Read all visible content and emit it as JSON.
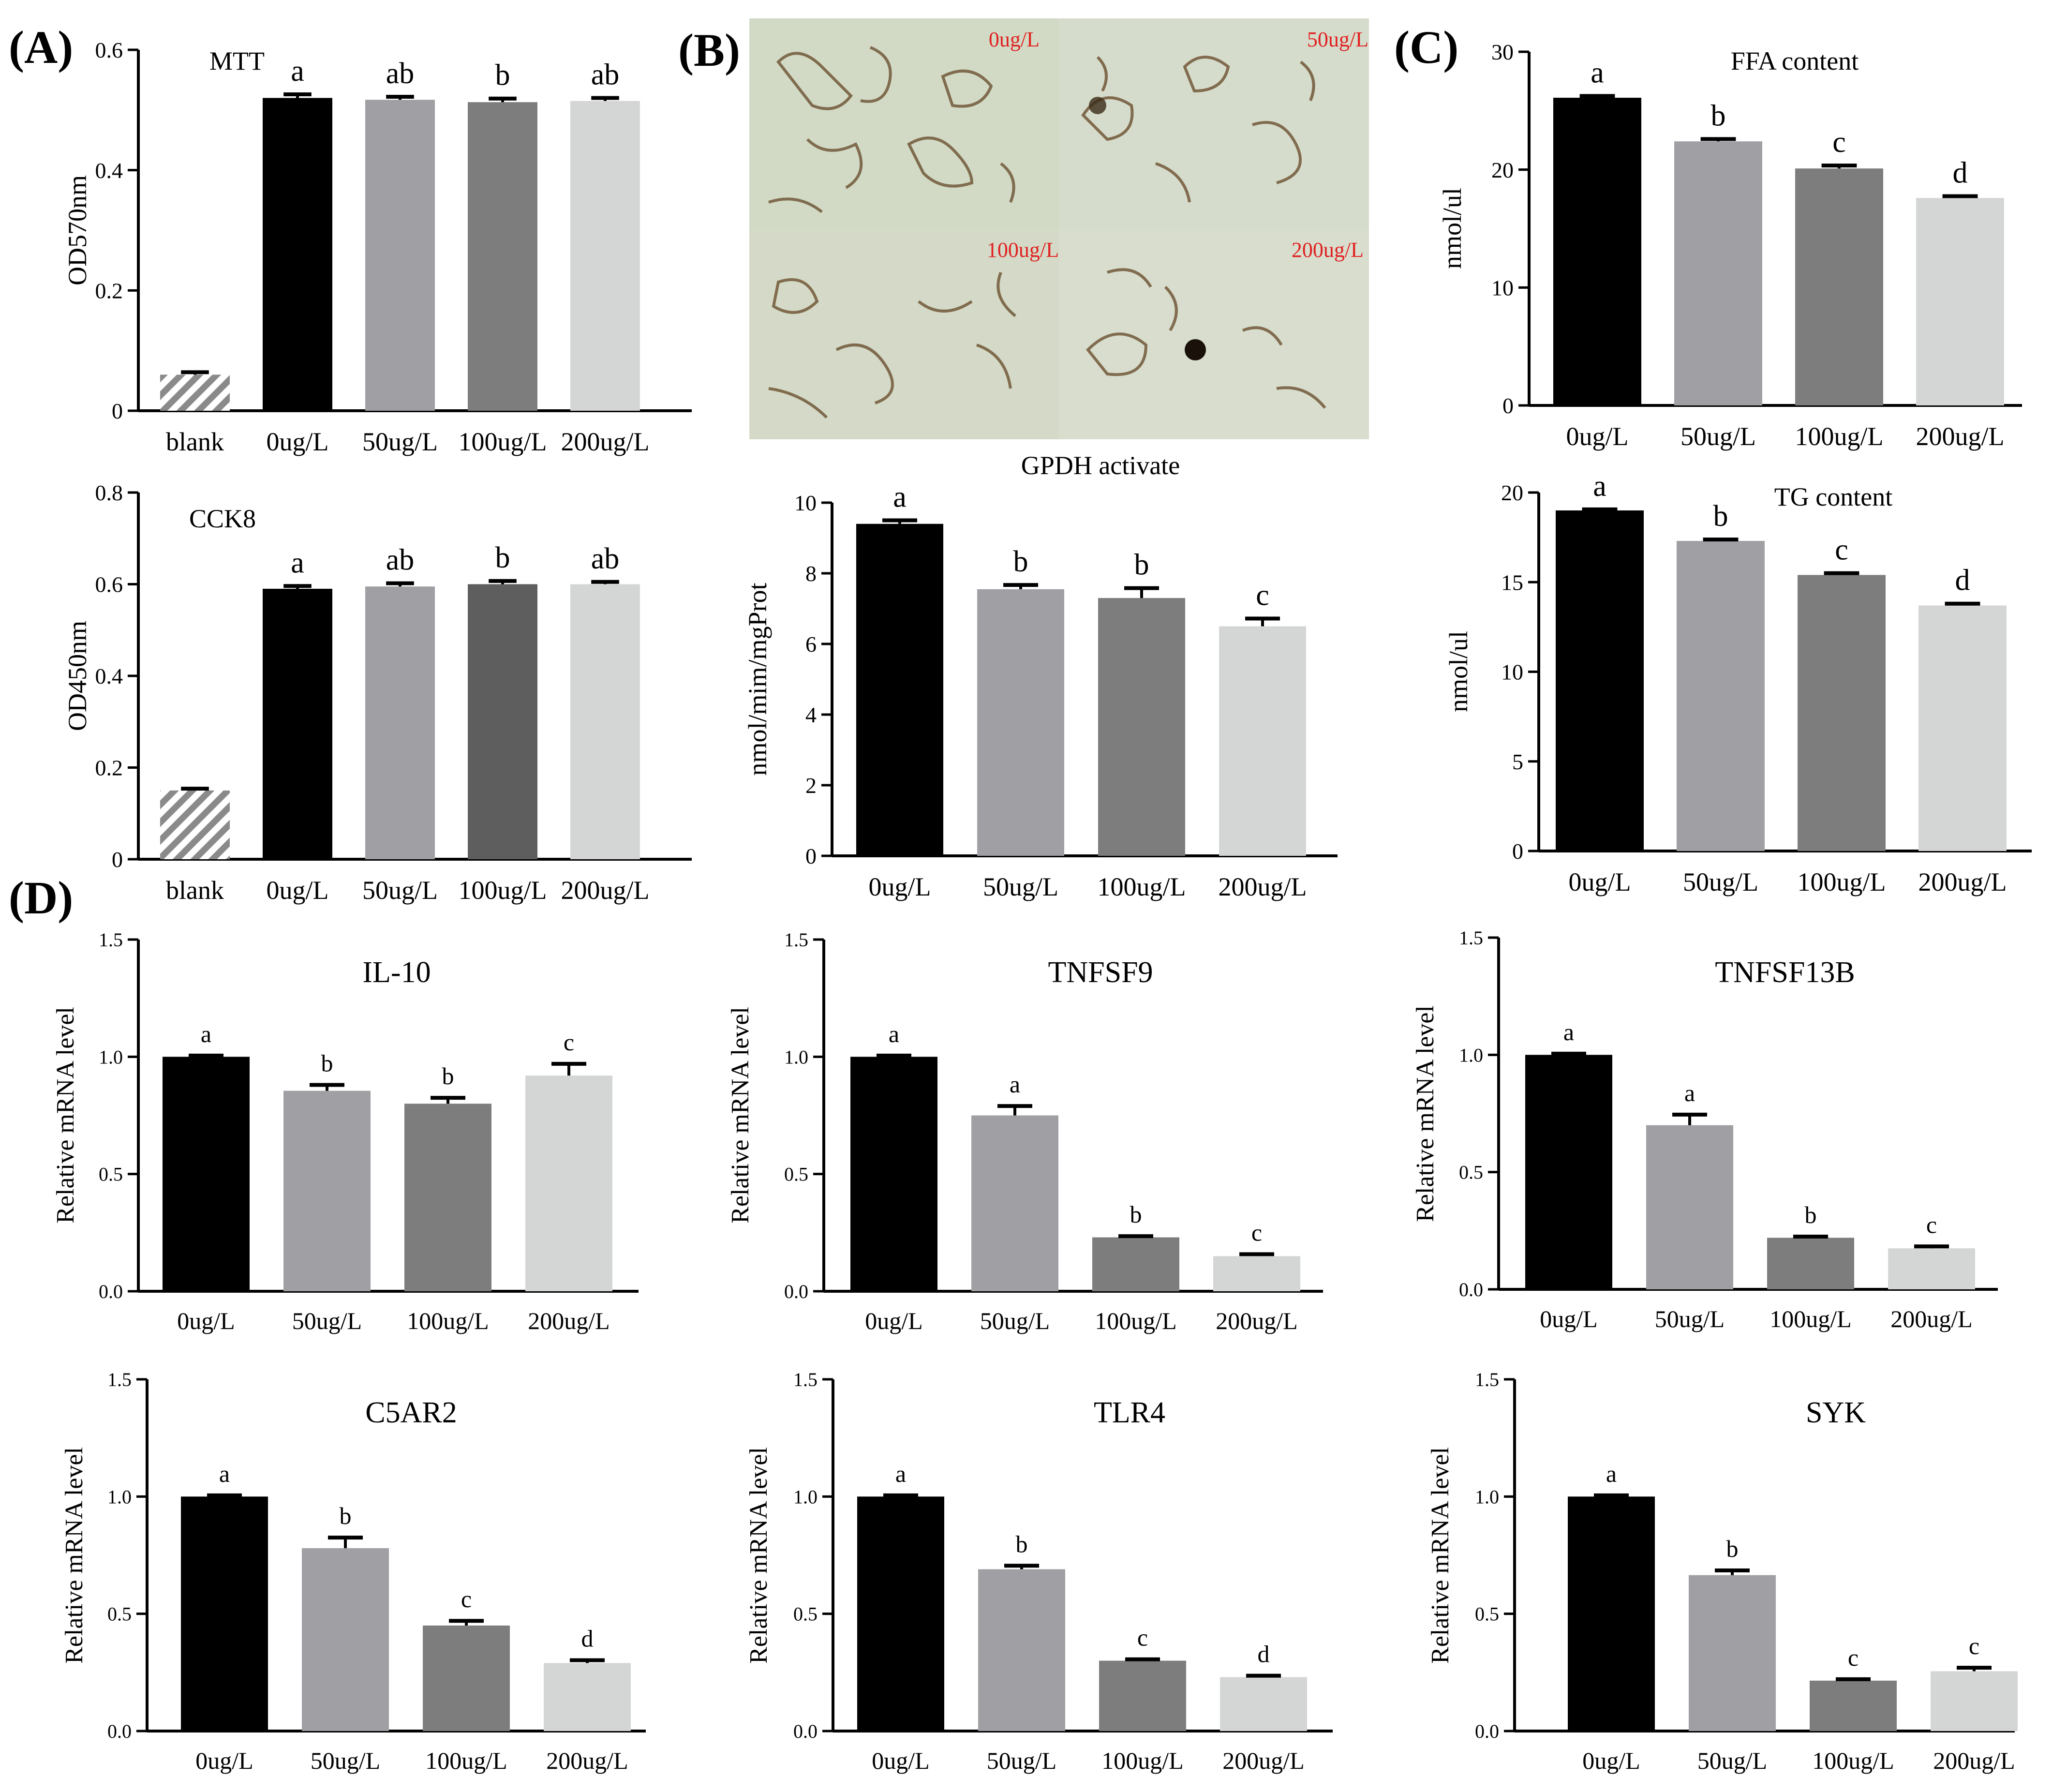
{
  "figure": {
    "panel_labels": {
      "A": "(A)",
      "B": "(B)",
      "C": "(C)",
      "D": "(D)"
    },
    "micrograph": {
      "labels": [
        "0ug/L",
        "50ug/L",
        "100ug/L",
        "200ug/L"
      ],
      "colors": {
        "background": "#cfd7c2",
        "stain": "#6b5030",
        "label": "#e02020"
      }
    }
  },
  "chart_data": [
    {
      "id": "mtt",
      "type": "bar",
      "title": "MTT",
      "ylabel": "OD570nm",
      "ylim": [
        0,
        0.6
      ],
      "yticks": [
        0,
        0.2,
        0.4,
        0.6
      ],
      "categories": [
        "blank",
        "0ug/L",
        "50ug/L",
        "100ug/L",
        "200ug/L"
      ],
      "values": [
        0.06,
        0.52,
        0.517,
        0.513,
        0.515
      ],
      "errors": [
        0.004,
        0.006,
        0.005,
        0.006,
        0.005
      ],
      "letters": [
        "",
        "a",
        "ab",
        "b",
        "ab"
      ],
      "colors": [
        "hatch",
        "#000000",
        "#a0a0a4",
        "#7d7d7d",
        "#d4d6d6"
      ]
    },
    {
      "id": "cck8",
      "type": "bar",
      "title": "CCK8",
      "ylabel": "OD450nm",
      "ylim": [
        0,
        0.8
      ],
      "yticks": [
        0,
        0.2,
        0.4,
        0.6,
        0.8
      ],
      "categories": [
        "blank",
        "0ug/L",
        "50ug/L",
        "100ug/L",
        "200ug/L"
      ],
      "values": [
        0.15,
        0.59,
        0.595,
        0.6,
        0.6
      ],
      "errors": [
        0.004,
        0.006,
        0.007,
        0.007,
        0.005
      ],
      "letters": [
        "",
        "a",
        "ab",
        "b",
        "ab"
      ],
      "colors": [
        "hatch",
        "#000000",
        "#a0a0a4",
        "#5e5e5e",
        "#d4d6d6"
      ]
    },
    {
      "id": "ffa",
      "type": "bar",
      "title": "FFA content",
      "ylabel": "nmol/ul",
      "ylim": [
        0,
        30
      ],
      "yticks": [
        0,
        10,
        20,
        30
      ],
      "categories": [
        "0ug/L",
        "50ug/L",
        "100ug/L",
        "200ug/L"
      ],
      "values": [
        26.1,
        22.4,
        20.1,
        17.6
      ],
      "errors": [
        0.15,
        0.2,
        0.25,
        0.15
      ],
      "letters": [
        "a",
        "b",
        "c",
        "d"
      ],
      "colors": [
        "#000000",
        "#a0a0a4",
        "#7d7d7d",
        "#d4d6d6"
      ]
    },
    {
      "id": "gpdh",
      "type": "bar",
      "title": "GPDH activate",
      "ylabel": "nmol/mim/mgProt",
      "ylim": [
        0,
        10
      ],
      "yticks": [
        0,
        2,
        4,
        6,
        8,
        10
      ],
      "categories": [
        "0ug/L",
        "50ug/L",
        "100ug/L",
        "200ug/L"
      ],
      "values": [
        9.4,
        7.55,
        7.3,
        6.5
      ],
      "errors": [
        0.1,
        0.12,
        0.28,
        0.22
      ],
      "letters": [
        "a",
        "b",
        "b",
        "c"
      ],
      "colors": [
        "#000000",
        "#a0a0a4",
        "#7d7d7d",
        "#d4d6d6"
      ]
    },
    {
      "id": "tg",
      "type": "bar",
      "title": "TG content",
      "ylabel": "nmol/ul",
      "ylim": [
        0,
        20
      ],
      "yticks": [
        0,
        5,
        10,
        15,
        20
      ],
      "categories": [
        "0ug/L",
        "50ug/L",
        "100ug/L",
        "200ug/L"
      ],
      "values": [
        19.0,
        17.3,
        15.4,
        13.7
      ],
      "errors": [
        0.06,
        0.08,
        0.1,
        0.1
      ],
      "letters": [
        "a",
        "b",
        "c",
        "d"
      ],
      "colors": [
        "#000000",
        "#a0a0a4",
        "#7d7d7d",
        "#d4d6d6"
      ]
    },
    {
      "id": "il10",
      "type": "bar",
      "title": "IL-10",
      "ylabel": "Relative mRNA level",
      "ylim": [
        0,
        1.5
      ],
      "yticks": [
        0.0,
        0.5,
        1.0,
        1.5
      ],
      "categories": [
        "0ug/L",
        "50ug/L",
        "100ug/L",
        "200ug/L"
      ],
      "values": [
        1.0,
        0.855,
        0.8,
        0.92
      ],
      "errors": [
        0.005,
        0.025,
        0.025,
        0.05
      ],
      "letters": [
        "a",
        "b",
        "b",
        "c"
      ],
      "colors": [
        "#000000",
        "#a0a0a4",
        "#7d7d7d",
        "#d4d6d6"
      ]
    },
    {
      "id": "tnfsf9",
      "type": "bar",
      "title": "TNFSF9",
      "ylabel": "Relative mRNA level",
      "ylim": [
        0,
        1.5
      ],
      "yticks": [
        0.0,
        0.5,
        1.0,
        1.5
      ],
      "categories": [
        "0ug/L",
        "50ug/L",
        "100ug/L",
        "200ug/L"
      ],
      "values": [
        1.0,
        0.75,
        0.23,
        0.15
      ],
      "errors": [
        0.005,
        0.04,
        0.005,
        0.008
      ],
      "letters": [
        "a",
        "a",
        "b",
        "c"
      ],
      "colors": [
        "#000000",
        "#a0a0a4",
        "#7d7d7d",
        "#d4d6d6"
      ]
    },
    {
      "id": "tnfsf13b",
      "type": "bar",
      "title": "TNFSF13B",
      "ylabel": "Relative mRNA level",
      "ylim": [
        0,
        1.5
      ],
      "yticks": [
        0.0,
        0.5,
        1.0,
        1.5
      ],
      "categories": [
        "0ug/L",
        "50ug/L",
        "100ug/L",
        "200ug/L"
      ],
      "values": [
        1.0,
        0.7,
        0.22,
        0.175
      ],
      "errors": [
        0.005,
        0.045,
        0.005,
        0.008
      ],
      "letters": [
        "a",
        "a",
        "b",
        "c"
      ],
      "colors": [
        "#000000",
        "#a0a0a4",
        "#7d7d7d",
        "#d4d6d6"
      ]
    },
    {
      "id": "c5ar2",
      "type": "bar",
      "title": "C5AR2",
      "ylabel": "Relative mRNA level",
      "ylim": [
        0,
        1.5
      ],
      "yticks": [
        0.0,
        0.5,
        1.0,
        1.5
      ],
      "categories": [
        "0ug/L",
        "50ug/L",
        "100ug/L",
        "200ug/L"
      ],
      "values": [
        1.0,
        0.78,
        0.45,
        0.29
      ],
      "errors": [
        0.005,
        0.045,
        0.02,
        0.012
      ],
      "letters": [
        "a",
        "b",
        "c",
        "d"
      ],
      "colors": [
        "#000000",
        "#a0a0a4",
        "#7d7d7d",
        "#d4d6d6"
      ]
    },
    {
      "id": "tlr4",
      "type": "bar",
      "title": "TLR4",
      "ylabel": "Relative mRNA level",
      "ylim": [
        0,
        1.5
      ],
      "yticks": [
        0.0,
        0.5,
        1.0,
        1.5
      ],
      "categories": [
        "0ug/L",
        "50ug/L",
        "100ug/L",
        "200ug/L"
      ],
      "values": [
        1.0,
        0.69,
        0.3,
        0.23
      ],
      "errors": [
        0.005,
        0.015,
        0.006,
        0.006
      ],
      "letters": [
        "a",
        "b",
        "c",
        "d"
      ],
      "colors": [
        "#000000",
        "#a0a0a4",
        "#7d7d7d",
        "#d4d6d6"
      ]
    },
    {
      "id": "syk",
      "type": "bar",
      "title": "SYK",
      "ylabel": "Relative mRNA level",
      "ylim": [
        0,
        1.5
      ],
      "yticks": [
        0.0,
        0.5,
        1.0,
        1.5
      ],
      "categories": [
        "0ug/L",
        "50ug/L",
        "100ug/L",
        "200ug/L"
      ],
      "values": [
        1.0,
        0.665,
        0.215,
        0.255
      ],
      "errors": [
        0.005,
        0.02,
        0.006,
        0.015
      ],
      "letters": [
        "a",
        "b",
        "c",
        "c"
      ],
      "colors": [
        "#000000",
        "#a0a0a4",
        "#7d7d7d",
        "#d4d6d6"
      ]
    }
  ]
}
